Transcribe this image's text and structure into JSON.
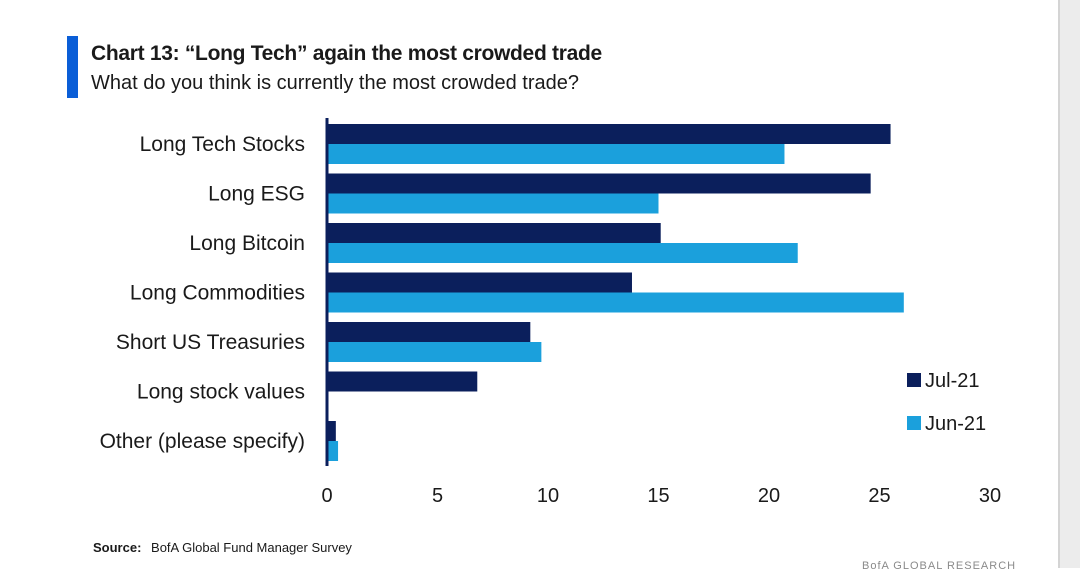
{
  "header": {
    "title": "Chart 13: “Long Tech” again the most crowded trade",
    "subtitle": "What do you think is currently the most crowded trade?"
  },
  "footer": {
    "source_label": "Source:",
    "source_text": "BofA Global Fund Manager Survey",
    "brand_cut": "BofA GLOBAL RESEARCH"
  },
  "colors": {
    "accent": "#0a5ed7",
    "series_dark": "#0b1f5c",
    "series_light": "#1ba0dc"
  },
  "chart_data": {
    "type": "bar",
    "orientation": "horizontal",
    "categories": [
      "Long Tech Stocks",
      "Long ESG",
      "Long Bitcoin",
      "Long Commodities",
      "Short US Treasuries",
      "Long stock values",
      "Other (please specify)"
    ],
    "series": [
      {
        "name": "Jul-21",
        "values": [
          25.5,
          24.6,
          15.1,
          13.8,
          9.2,
          6.8,
          0.4
        ]
      },
      {
        "name": "Jun-21",
        "values": [
          20.7,
          15.0,
          21.3,
          26.1,
          9.7,
          0.0,
          0.5
        ]
      }
    ],
    "xlim": [
      0,
      30
    ],
    "xticks": [
      0,
      5,
      10,
      15,
      20,
      25,
      30
    ],
    "grid": false,
    "legend_position": "right"
  }
}
